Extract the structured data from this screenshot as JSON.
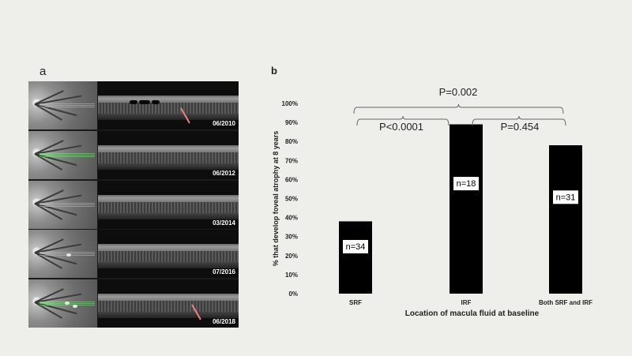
{
  "panel_a": {
    "label": "a",
    "scans": [
      {
        "date": "06/2010"
      },
      {
        "date": "06/2012"
      },
      {
        "date": "03/2014"
      },
      {
        "date": "07/2016"
      },
      {
        "date": "06/2018"
      }
    ]
  },
  "panel_b": {
    "label": "b"
  },
  "chart_data": {
    "type": "bar",
    "categories": [
      "SRF",
      "IRF",
      "Both SRF and IRF"
    ],
    "values": [
      38,
      89,
      78
    ],
    "bar_labels": [
      "n=34",
      "n=18",
      "n=31"
    ],
    "xlabel": "Location of macula fluid at baseline",
    "ylabel": "% that develop foveal atrophy at 8 years",
    "ylim": [
      0,
      100
    ],
    "yticks": [
      "0%",
      "10%",
      "20%",
      "30%",
      "40%",
      "50%",
      "60%",
      "70%",
      "80%",
      "90%",
      "100%"
    ],
    "bar_color": "#000000",
    "grid": false,
    "annotations": [
      {
        "text": "P=0.002",
        "from": 0,
        "to": 2
      },
      {
        "text": "P<0.0001",
        "from": 0,
        "to": 1
      },
      {
        "text": "P=0.454",
        "from": 1,
        "to": 2
      }
    ]
  }
}
